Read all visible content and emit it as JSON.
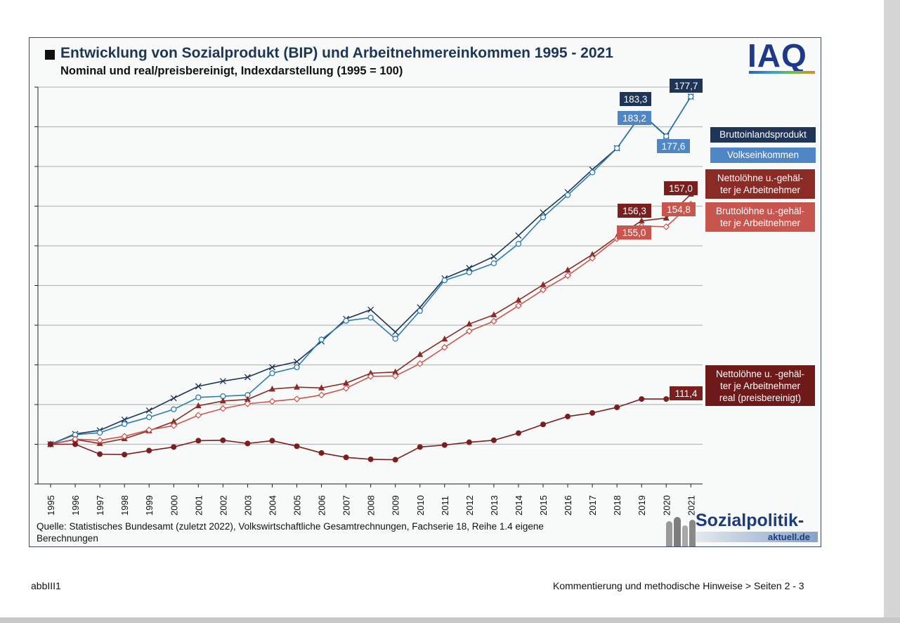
{
  "chart_data": {
    "type": "line",
    "title": "Entwicklung von Sozialprodukt (BIP) und Arbeitnehmereinkommen 1995 - 2021",
    "subtitle": "Nominal und real/preisbereinigt, Indexdarstellung (1995 = 100)",
    "x": [
      "1995",
      "1996",
      "1997",
      "1998",
      "1999",
      "2000",
      "2001",
      "2002",
      "2003",
      "2004",
      "2005",
      "2006",
      "2007",
      "2008",
      "2009",
      "2010",
      "2011",
      "2012",
      "2013",
      "2014",
      "2015",
      "2016",
      "2017",
      "2018",
      "2019",
      "2020",
      "2021"
    ],
    "ylim": [
      90,
      190
    ],
    "grid": true,
    "series": [
      {
        "name": "Bruttoinlandsprodukt",
        "color": "#1f3557",
        "marker": "x",
        "values": [
          100,
          102.6,
          103.5,
          106.2,
          108.5,
          111.6,
          114.6,
          115.9,
          116.9,
          119.4,
          120.8,
          125.9,
          131.6,
          133.9,
          128.3,
          134.5,
          141.8,
          144.4,
          147.3,
          152.6,
          158.4,
          163.5,
          169.2,
          174.6,
          183.3,
          177.7,
          187.6
        ]
      },
      {
        "name": "Volkseinkommen",
        "color": "#2a7bb3",
        "marker": "circle",
        "values": [
          100,
          102.4,
          102.9,
          105.1,
          106.8,
          108.8,
          111.8,
          112.1,
          112.4,
          117.9,
          119.4,
          126.4,
          131.1,
          131.9,
          126.6,
          133.6,
          141.3,
          143.3,
          145.6,
          150.5,
          157.2,
          162.8,
          168.5,
          174.6,
          183.2,
          177.6,
          187.6
        ]
      },
      {
        "name": "Nettolöhne u.-gehälter je Arbeitnehmer",
        "color": "#8b2b26",
        "marker": "triangle",
        "values": [
          100,
          101.2,
          100.2,
          101.4,
          103.4,
          105.7,
          109.7,
          110.9,
          111.3,
          113.9,
          114.4,
          114.2,
          115.4,
          117.9,
          118.2,
          122.6,
          126.5,
          130.3,
          132.6,
          136.3,
          140.2,
          143.9,
          147.8,
          152.3,
          156.3,
          157.0,
          163.0
        ]
      },
      {
        "name": "Bruttolöhne u.-gehälter je Arbeitnehmer",
        "color": "#c9554f",
        "marker": "diamond",
        "values": [
          100,
          101.3,
          101.0,
          102.0,
          103.6,
          104.7,
          107.3,
          109.0,
          110.2,
          110.8,
          111.4,
          112.4,
          114.1,
          117.1,
          117.2,
          120.3,
          124.4,
          128.5,
          131.0,
          134.9,
          138.9,
          142.5,
          146.9,
          151.8,
          155.0,
          154.8,
          160.5
        ]
      },
      {
        "name": "Nettolöhne u. -gehälter je Arbeitnehmer real (preisbereinigt)",
        "color": "#7a1e1e",
        "marker": "dot",
        "values": [
          100,
          100.0,
          97.5,
          97.4,
          98.4,
          99.3,
          100.9,
          101.0,
          100.2,
          100.9,
          99.5,
          97.8,
          96.7,
          96.2,
          96.1,
          99.3,
          99.8,
          100.5,
          101.0,
          102.8,
          105.0,
          107.0,
          107.9,
          109.3,
          111.4,
          111.4,
          113.3
        ]
      }
    ],
    "data_labels": [
      {
        "text": "183,3",
        "color": "#1f3557"
      },
      {
        "text": "177,7",
        "color": "#1f3557"
      },
      {
        "text": "183,2",
        "color": "#4f86c6"
      },
      {
        "text": "177,6",
        "color": "#4f86c6"
      },
      {
        "text": "156,3",
        "color": "#7a1e1e"
      },
      {
        "text": "157,0",
        "color": "#7a1e1e"
      },
      {
        "text": "155,0",
        "color": "#c9554f"
      },
      {
        "text": "154,8",
        "color": "#c9554f"
      },
      {
        "text": "111,4",
        "color": "#7a1e1e"
      }
    ]
  },
  "legend": {
    "bip": {
      "line": "Bruttoinlandsprodukt",
      "color": "#1f3557"
    },
    "volk": {
      "line": "Volkseinkommen",
      "color": "#4f86c6"
    },
    "netto": {
      "line1": "Nettolöhne u.-gehäl-",
      "line2": "ter je Arbeitnehmer",
      "color": "#8b2b26"
    },
    "brutto": {
      "line1": "Bruttolöhne u.-gehäl-",
      "line2": "ter je Arbeitnehmer",
      "color": "#c9554f"
    },
    "real": {
      "line1": "Nettolöhne u. -gehäl-",
      "line2": "ter je Arbeitnehmer",
      "line3": "real (preisbereinigt)",
      "color": "#6e1a1a"
    }
  },
  "logo_text": "IAQ",
  "source_line1": "Quelle: Statistisches Bundesamt (zuletzt 2022), Volkswirtschaftliche Gesamtrechnungen, Fachserie 18, Reihe 1.4  eigene",
  "source_line2": "Berechnungen",
  "brand_word": "Sozialpolitik-",
  "brand_sub": "aktuell.de",
  "footer_left": "abbIII1",
  "footer_right": "Kommentierung und methodische Hinweise > Seiten 2 - 3"
}
